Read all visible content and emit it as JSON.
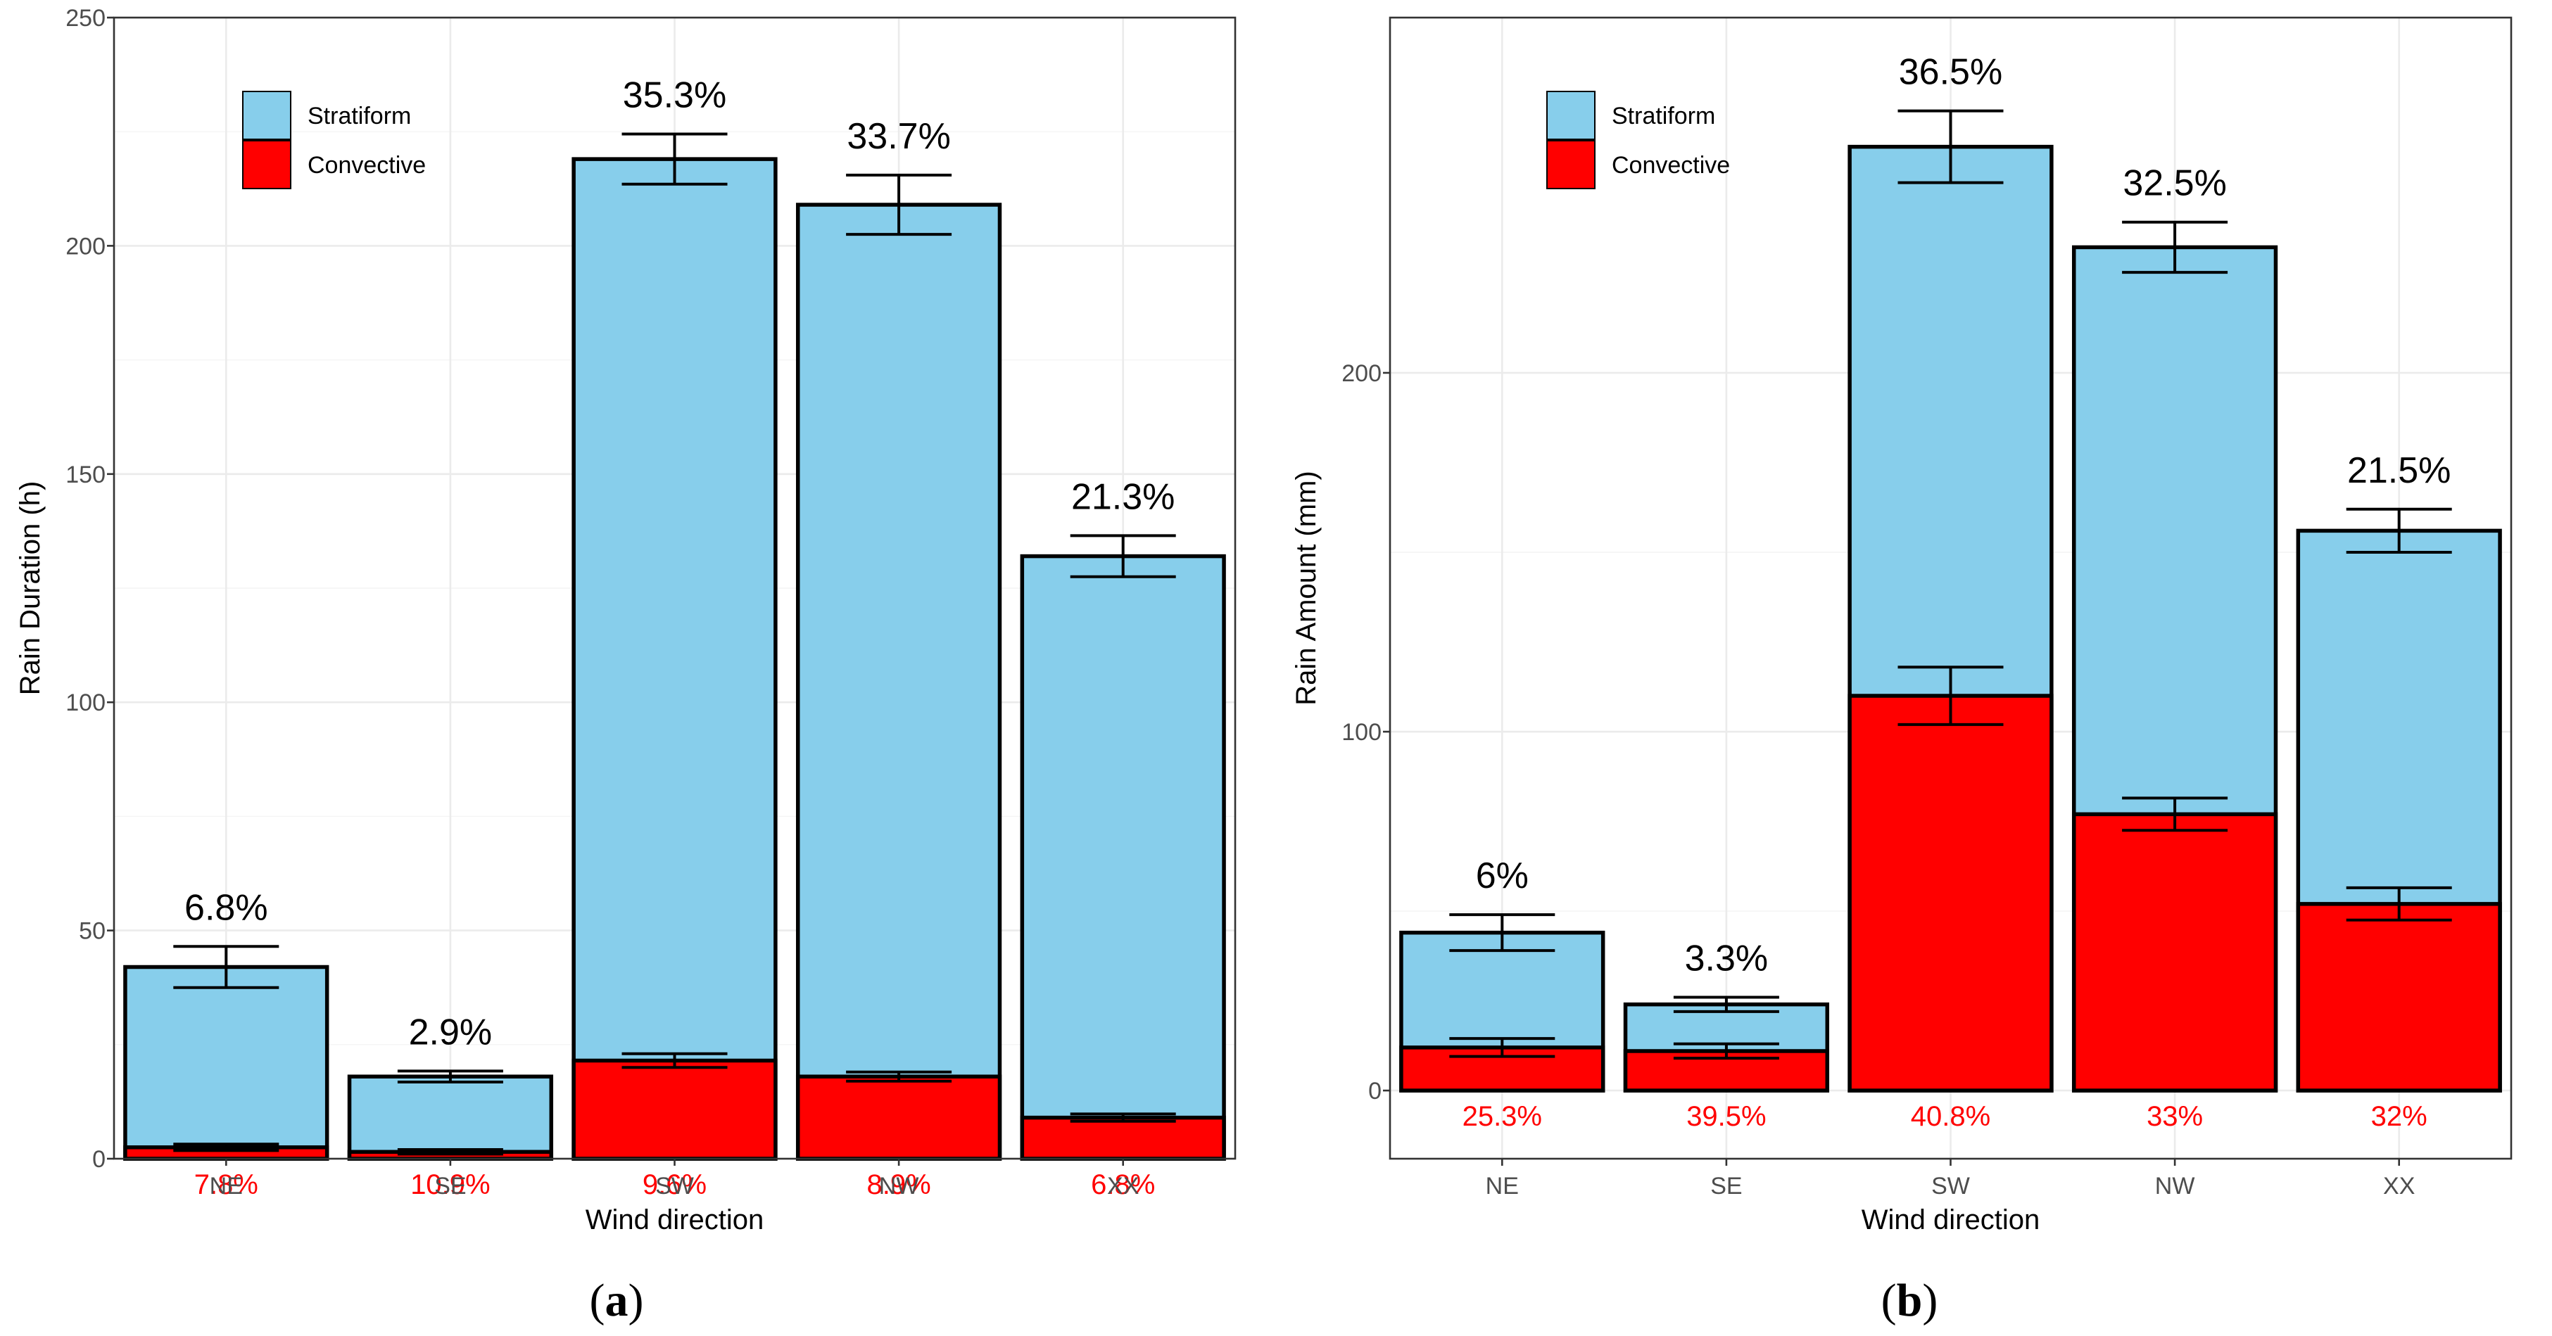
{
  "chart_data": [
    {
      "type": "bar",
      "panel_label": "a",
      "xlabel": "Wind direction",
      "ylabel": "Rain Duration (h)",
      "ylim": [
        0,
        250
      ],
      "yticks": [
        0,
        50,
        100,
        150,
        200,
        250
      ],
      "categories": [
        "NE",
        "SE",
        "SW",
        "NW",
        "XX"
      ],
      "grid": true,
      "legend_position": "top-left",
      "series": [
        {
          "name": "Stratiform",
          "color": "#87CEEB",
          "values": [
            42,
            18,
            219,
            209,
            132
          ],
          "error": [
            4.5,
            1.2,
            5.5,
            6.5,
            4.5
          ],
          "labels": [
            "6.8%",
            "2.9%",
            "35.3%",
            "33.7%",
            "21.3%"
          ]
        },
        {
          "name": "Convective",
          "color": "#FF0000",
          "values": [
            2.5,
            1.5,
            21.5,
            18,
            9
          ],
          "error": [
            0.7,
            0.5,
            1.5,
            1.0,
            0.8
          ],
          "labels": [
            "7.8%",
            "10.9%",
            "9.6%",
            "8.9%",
            "6.8%"
          ]
        }
      ]
    },
    {
      "type": "bar",
      "panel_label": "b",
      "xlabel": "Wind direction",
      "ylabel": "Rain Amount (mm)",
      "ylim": [
        -19,
        299
      ],
      "yticks": [
        0,
        100,
        200
      ],
      "categories": [
        "NE",
        "SE",
        "SW",
        "NW",
        "XX"
      ],
      "grid": true,
      "legend_position": "top-left",
      "series": [
        {
          "name": "Stratiform",
          "color": "#87CEEB",
          "values": [
            44,
            24,
            263,
            235,
            156
          ],
          "error": [
            5,
            2,
            10,
            7,
            6
          ],
          "labels": [
            "6%",
            "3.3%",
            "36.5%",
            "32.5%",
            "21.5%"
          ]
        },
        {
          "name": "Convective",
          "color": "#FF0000",
          "values": [
            12,
            11,
            110,
            77,
            52
          ],
          "error": [
            2.5,
            2,
            8,
            4.5,
            4.5
          ],
          "labels": [
            "25.3%",
            "39.5%",
            "40.8%",
            "33%",
            "32%"
          ]
        }
      ]
    }
  ],
  "captions": [
    "(a)",
    "(b)"
  ]
}
